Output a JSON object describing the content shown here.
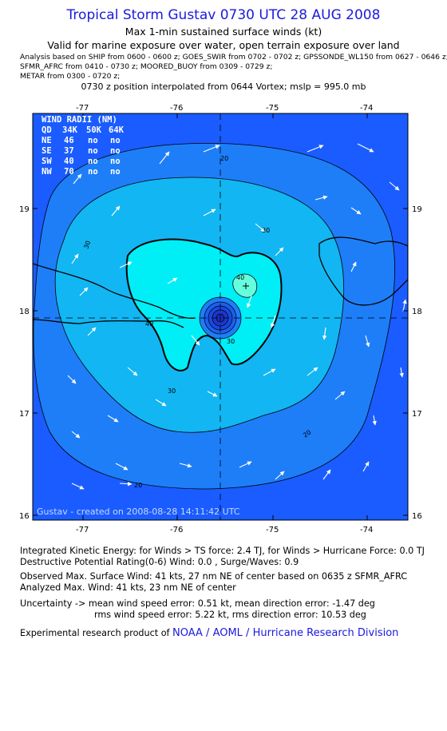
{
  "header": {
    "title": "Tropical Storm Gustav 0730 UTC 28 AUG 2008",
    "subtitle1": "Max 1-min sustained surface winds (kt)",
    "subtitle2": "Valid for marine exposure over water, open terrain exposure over land",
    "analysis_lines": [
      "Analysis based on  SHIP from 0600 - 0600 z;  GOES_SWIR from 0702 - 0702 z;  GPSSONDE_WL150 from 0627 - 0646 z;",
      "SFMR_AFRC from 0410 - 0730 z;  MOORED_BUOY from 0309 - 0729 z;",
      "METAR from 0300 - 0720 z;"
    ],
    "position_note": "0730 z position interpolated from 0644 Vortex; mslp = 995.0 mb"
  },
  "map": {
    "lon_ticks": [
      "-77",
      "-76",
      "-75",
      "-74"
    ],
    "lat_ticks": [
      "19",
      "18",
      "17",
      "16"
    ],
    "contour_labels": [
      "20",
      "30",
      "30",
      "30",
      "40",
      "20",
      "20",
      "30",
      "40"
    ],
    "credit": "Gustav - created on 2008-08-28 14:11:42 UTC",
    "wind_radii": {
      "title": "WIND RADII (NM)",
      "header": [
        "QD",
        "34K",
        "50K",
        "64K"
      ],
      "rows": [
        [
          "NE",
          "46",
          "no",
          "no"
        ],
        [
          "SE",
          "37",
          "no",
          "no"
        ],
        [
          "SW",
          "40",
          "no",
          "no"
        ],
        [
          "NW",
          "70",
          "no",
          "no"
        ]
      ]
    },
    "colors": {
      "background": "#1a5cff",
      "band_20": "#1e7ef8",
      "band_30": "#12b6f2",
      "band_34": "#00eef6",
      "band_40": "#66ffdd",
      "core": "#1a3cd8",
      "land": "#000000"
    }
  },
  "footer": {
    "ike": "Integrated Kinetic Energy:  for Winds > TS force: 2.4 TJ,  for Winds > Hurricane Force: 0.0 TJ",
    "dpr": "Destructive Potential Rating(0-6)   Wind: 0.0 , Surge/Waves: 0.9",
    "observed": "Observed Max. Surface Wind: 41 kts, 27 nm NE of center based on 0635 z SFMR_AFRC",
    "analyzed": "Analyzed Max. Wind: 41 kts, 23 nm NE of center",
    "unc1": "Uncertainty -> mean wind speed error: 0.51 kt,   mean direction error:  -1.47 deg",
    "unc2": "rms wind speed error: 5.22 kt,   rms direction error: 10.53 deg",
    "product": "Experimental research product of",
    "org": "NOAA / AOML / Hurricane Research Division"
  }
}
